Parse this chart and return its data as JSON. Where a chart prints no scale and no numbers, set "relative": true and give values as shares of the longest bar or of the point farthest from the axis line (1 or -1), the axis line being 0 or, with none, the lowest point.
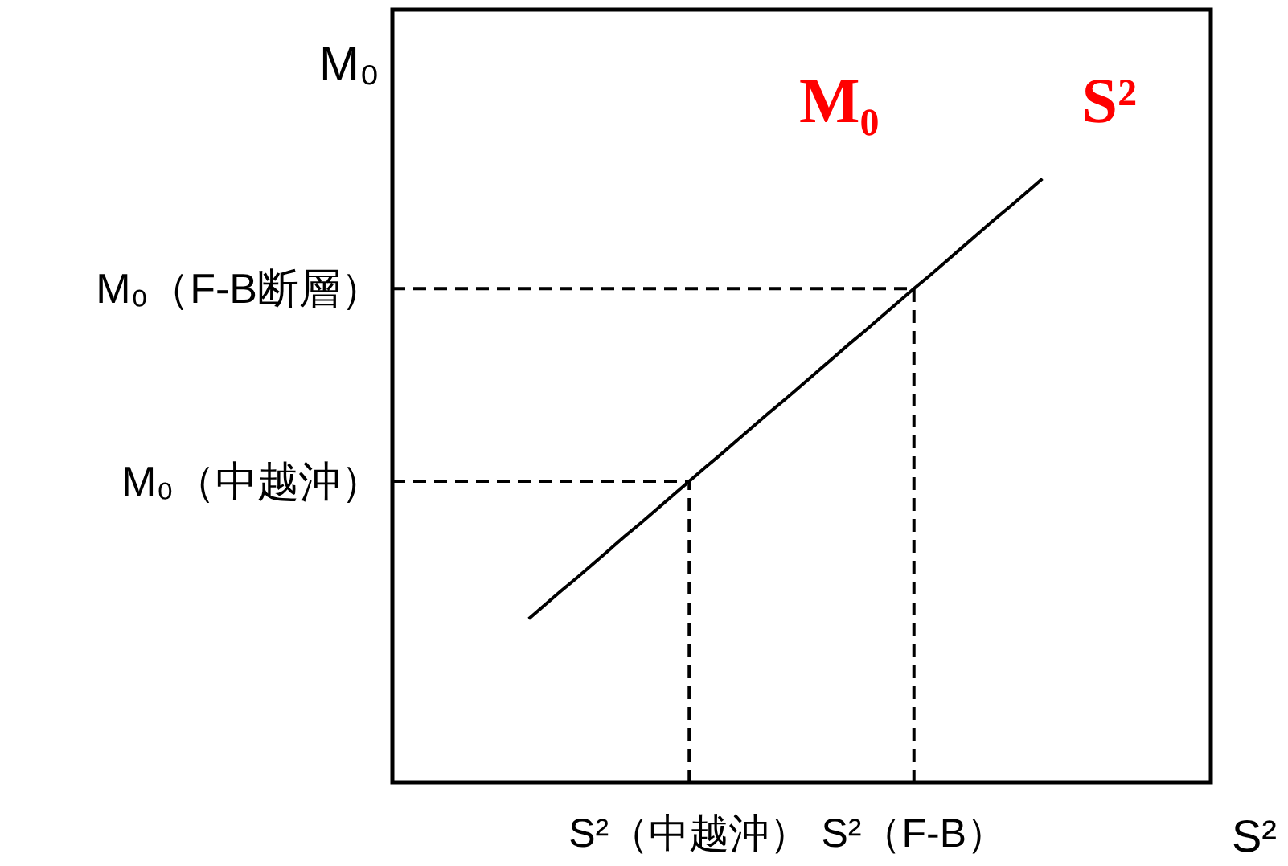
{
  "chart_data": {
    "type": "line",
    "xlabel": "S²",
    "ylabel": "M₀",
    "relative": true,
    "categories": [
      null,
      null,
      null,
      null,
      null,
      null,
      null,
      null,
      null,
      null,
      null,
      null,
      null,
      null,
      null,
      null,
      null,
      null,
      "S²（中越沖）",
      null,
      null,
      null,
      null,
      null,
      null,
      null,
      null,
      null,
      null,
      null,
      null,
      null,
      "S²（F-B）",
      null,
      null,
      null,
      null,
      null,
      null,
      null,
      null,
      null,
      null,
      null,
      null,
      null,
      null,
      null,
      null,
      null,
      null
    ],
    "series": [
      {
        "color": "#000000",
        "line_style": "solid",
        "values": [
          null,
          null,
          null,
          null,
          null,
          null,
          null,
          null,
          0.271,
          0.294,
          0.317,
          0.339,
          0.362,
          0.385,
          0.408,
          0.43,
          0.453,
          0.476,
          0.499,
          0.522,
          0.544,
          0.567,
          0.59,
          0.613,
          0.635,
          0.658,
          0.681,
          0.704,
          0.727,
          0.749,
          0.772,
          0.795,
          0.818,
          0.84,
          0.863,
          0.886,
          0.909,
          0.932,
          0.954,
          0.977,
          1.0,
          null,
          null,
          null,
          null,
          null,
          null,
          null,
          null,
          null,
          null
        ]
      }
    ],
    "ref_lines": [
      {
        "axis": "y",
        "value": 0.818,
        "label": "M₀（F-B断層）",
        "color": "#000000",
        "line_style": "dashed"
      },
      {
        "axis": "y",
        "value": 0.499,
        "label": "M₀（中越沖）",
        "color": "#000000",
        "line_style": "dashed"
      },
      {
        "axis": "x",
        "value": "S²（中越沖）",
        "color": "#000000",
        "line_style": "dashed"
      },
      {
        "axis": "x",
        "value": "S²（F-B）",
        "color": "#000000",
        "line_style": "dashed"
      }
    ],
    "annotations": [
      "M₀",
      "S²"
    ]
  }
}
